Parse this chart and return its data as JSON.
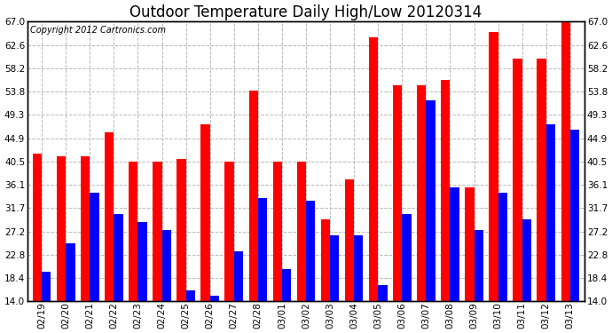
{
  "title": "Outdoor Temperature Daily High/Low 20120314",
  "copyright": "Copyright 2012 Cartronics.com",
  "dates": [
    "02/19",
    "02/20",
    "02/21",
    "02/22",
    "02/23",
    "02/24",
    "02/25",
    "02/26",
    "02/27",
    "02/28",
    "03/01",
    "03/02",
    "03/03",
    "03/04",
    "03/05",
    "03/06",
    "03/07",
    "03/08",
    "03/09",
    "03/10",
    "03/11",
    "03/12",
    "03/13"
  ],
  "highs": [
    42.0,
    41.5,
    41.5,
    46.0,
    40.5,
    40.5,
    41.0,
    47.5,
    40.5,
    54.0,
    40.5,
    40.5,
    29.5,
    37.0,
    64.0,
    55.0,
    55.0,
    56.0,
    35.5,
    65.0,
    60.0,
    60.0,
    67.0
  ],
  "lows": [
    19.5,
    25.0,
    34.5,
    30.5,
    29.0,
    27.5,
    16.0,
    15.0,
    23.5,
    33.5,
    20.0,
    33.0,
    26.5,
    26.5,
    17.0,
    30.5,
    52.0,
    35.5,
    27.5,
    34.5,
    29.5,
    47.5,
    46.5
  ],
  "high_color": "#ff0000",
  "low_color": "#0000ff",
  "bg_color": "#ffffff",
  "grid_color": "#b8b8b8",
  "yticks": [
    14.0,
    18.4,
    22.8,
    27.2,
    31.7,
    36.1,
    40.5,
    44.9,
    49.3,
    53.8,
    58.2,
    62.6,
    67.0
  ],
  "ylim": [
    14.0,
    67.0
  ],
  "ymin": 14.0,
  "title_fontsize": 12,
  "copyright_fontsize": 7.0,
  "bar_width": 0.38
}
